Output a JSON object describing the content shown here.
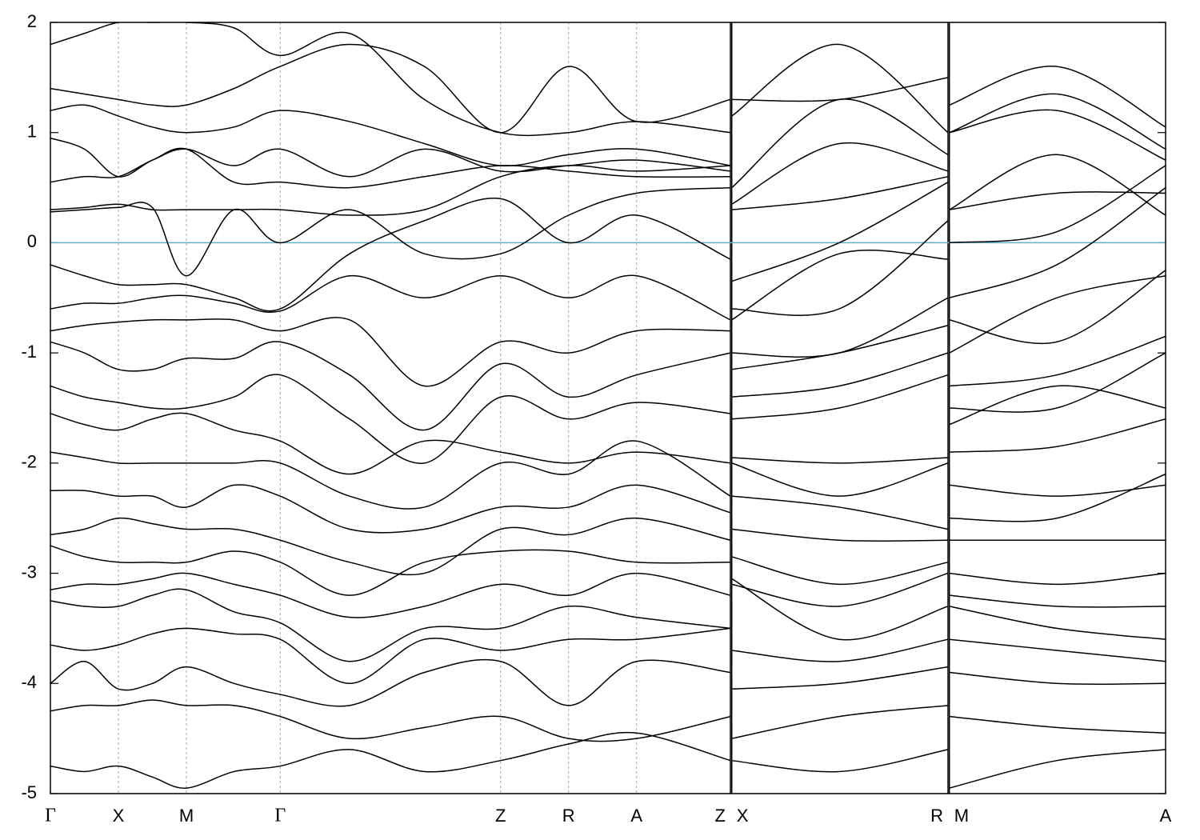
{
  "chart_data": {
    "type": "line",
    "x": [
      0,
      0.25,
      0.5,
      0.75,
      1.0,
      1.35,
      1.69,
      2.2,
      2.75,
      3.31,
      3.81,
      4.31,
      5.0,
      5.01,
      5.8,
      6.6,
      6.61,
      7.4,
      8.2
    ],
    "xlim": [
      0,
      8.2
    ],
    "xticks": [
      {
        "value": 0,
        "label": "Γ"
      },
      {
        "value": 0.5,
        "label": "X"
      },
      {
        "value": 1.0,
        "label": "M"
      },
      {
        "value": 1.69,
        "label": "Γ"
      },
      {
        "value": 3.31,
        "label": "Z"
      },
      {
        "value": 3.81,
        "label": "R"
      },
      {
        "value": 4.31,
        "label": "A"
      },
      {
        "value": 5.0,
        "label": "Z"
      },
      {
        "value": 5.01,
        "label": "X"
      },
      {
        "value": 6.6,
        "label": "R"
      },
      {
        "value": 6.61,
        "label": "M"
      },
      {
        "value": 8.2,
        "label": "A"
      }
    ],
    "ylim": [
      -5,
      2
    ],
    "yticks": [
      -5,
      -4,
      -3,
      -2,
      -1,
      0,
      1,
      2
    ],
    "line_color": "#000000",
    "fermi_level": 0,
    "fermi_color": "#5fb0c8",
    "series": [
      {
        "values": [
          1.8,
          1.9,
          2.0,
          2.0,
          2.0,
          1.95,
          1.7,
          1.9,
          1.3,
          1.0,
          1.0,
          1.1,
          1.0,
          1.15,
          1.8,
          1.0,
          1.25,
          1.6,
          1.05
        ]
      },
      {
        "values": [
          1.4,
          1.35,
          1.3,
          1.25,
          1.25,
          1.4,
          1.6,
          1.8,
          1.6,
          1.0,
          1.6,
          1.1,
          1.3,
          1.3,
          1.3,
          1.5,
          1.0,
          1.35,
          0.85
        ]
      },
      {
        "values": [
          1.2,
          1.25,
          1.15,
          1.05,
          1.0,
          1.05,
          1.2,
          1.1,
          0.9,
          0.7,
          0.8,
          0.85,
          0.7,
          0.5,
          1.3,
          0.8,
          1.0,
          1.2,
          0.75
        ]
      },
      {
        "values": [
          0.95,
          0.85,
          0.6,
          0.75,
          0.85,
          0.7,
          0.85,
          0.6,
          0.85,
          0.65,
          0.7,
          0.75,
          0.65,
          0.35,
          0.9,
          0.65,
          0.3,
          0.45,
          0.45
        ]
      },
      {
        "values": [
          0.55,
          0.6,
          0.6,
          0.75,
          0.85,
          0.55,
          0.55,
          0.5,
          0.6,
          0.7,
          0.65,
          0.6,
          0.6,
          0.3,
          0.4,
          0.6,
          0.3,
          0.8,
          0.25
        ]
      },
      {
        "values": [
          0.3,
          0.32,
          0.35,
          0.3,
          0.3,
          0.3,
          0.3,
          0.25,
          0.3,
          0.6,
          0.7,
          0.65,
          0.7,
          -0.35,
          0.0,
          0.55,
          0.0,
          0.1,
          0.7
        ]
      },
      {
        "values": [
          0.28,
          0.3,
          0.32,
          0.32,
          -0.3,
          0.3,
          0.0,
          0.3,
          -0.1,
          -0.1,
          0.25,
          0.45,
          0.5,
          -0.6,
          -0.6,
          0.2,
          -0.5,
          -0.2,
          0.5
        ]
      },
      {
        "values": [
          -0.2,
          -0.3,
          -0.38,
          -0.38,
          -0.38,
          -0.5,
          -0.6,
          -0.1,
          0.2,
          0.4,
          0.0,
          0.25,
          -0.15,
          -0.7,
          -0.1,
          -0.15,
          -0.7,
          -0.9,
          -0.25
        ]
      },
      {
        "values": [
          -0.6,
          -0.55,
          -0.55,
          -0.5,
          -0.48,
          -0.55,
          -0.62,
          -0.3,
          -0.5,
          -0.3,
          -0.5,
          -0.3,
          -0.7,
          -1.0,
          -1.0,
          -0.5,
          -1.0,
          -0.5,
          -0.3
        ]
      },
      {
        "values": [
          -0.8,
          -0.75,
          -0.72,
          -0.7,
          -0.7,
          -0.7,
          -0.8,
          -0.7,
          -1.3,
          -0.9,
          -1.0,
          -0.8,
          -0.8,
          -1.15,
          -1.0,
          -0.75,
          -1.3,
          -1.2,
          -0.85
        ]
      },
      {
        "values": [
          -0.9,
          -1.0,
          -1.15,
          -1.15,
          -1.05,
          -1.05,
          -0.9,
          -1.2,
          -1.7,
          -1.1,
          -1.4,
          -1.2,
          -1.0,
          -1.4,
          -1.3,
          -1.0,
          -1.5,
          -1.5,
          -1.0
        ]
      },
      {
        "values": [
          -1.3,
          -1.4,
          -1.45,
          -1.5,
          -1.5,
          -1.4,
          -1.2,
          -1.6,
          -2.0,
          -1.4,
          -1.6,
          -1.45,
          -1.55,
          -1.6,
          -1.5,
          -1.2,
          -1.65,
          -1.3,
          -1.5
        ]
      },
      {
        "values": [
          -1.55,
          -1.65,
          -1.7,
          -1.6,
          -1.55,
          -1.7,
          -1.8,
          -2.1,
          -1.8,
          -1.9,
          -2.0,
          -1.9,
          -2.0,
          -1.95,
          -2.0,
          -1.95,
          -1.9,
          -1.85,
          -1.6
        ]
      },
      {
        "values": [
          -1.9,
          -1.95,
          -2.0,
          -2.0,
          -2.0,
          -2.0,
          -2.0,
          -2.3,
          -2.4,
          -2.0,
          -2.1,
          -1.8,
          -2.3,
          -2.0,
          -2.3,
          -2.0,
          -2.2,
          -2.3,
          -2.2
        ]
      },
      {
        "values": [
          -2.25,
          -2.25,
          -2.3,
          -2.3,
          -2.4,
          -2.2,
          -2.3,
          -2.6,
          -2.6,
          -2.4,
          -2.4,
          -2.2,
          -2.45,
          -2.3,
          -2.4,
          -2.6,
          -2.5,
          -2.5,
          -2.1
        ]
      },
      {
        "values": [
          -2.65,
          -2.6,
          -2.5,
          -2.55,
          -2.6,
          -2.6,
          -2.7,
          -2.9,
          -3.0,
          -2.6,
          -2.65,
          -2.5,
          -2.7,
          -2.6,
          -2.7,
          -2.7,
          -2.7,
          -2.7,
          -2.7
        ]
      },
      {
        "values": [
          -2.75,
          -2.85,
          -2.9,
          -2.9,
          -2.9,
          -2.8,
          -2.9,
          -3.2,
          -2.9,
          -2.8,
          -2.8,
          -2.9,
          -2.9,
          -2.85,
          -3.1,
          -2.9,
          -3.0,
          -3.1,
          -3.0
        ]
      },
      {
        "values": [
          -3.15,
          -3.1,
          -3.1,
          -3.05,
          -3.0,
          -3.1,
          -3.2,
          -3.4,
          -3.3,
          -3.1,
          -3.2,
          -3.0,
          -3.2,
          -3.1,
          -3.3,
          -3.0,
          -3.2,
          -3.3,
          -3.3
        ]
      },
      {
        "values": [
          -3.25,
          -3.3,
          -3.3,
          -3.2,
          -3.15,
          -3.35,
          -3.45,
          -3.8,
          -3.5,
          -3.5,
          -3.3,
          -3.4,
          -3.5,
          -3.05,
          -3.6,
          -3.3,
          -3.3,
          -3.5,
          -3.6
        ]
      },
      {
        "values": [
          -3.65,
          -3.7,
          -3.65,
          -3.55,
          -3.5,
          -3.55,
          -3.6,
          -4.0,
          -3.6,
          -3.7,
          -3.6,
          -3.6,
          -3.5,
          -3.7,
          -3.8,
          -3.6,
          -3.6,
          -3.7,
          -3.8
        ]
      },
      {
        "values": [
          -4.0,
          -3.8,
          -4.05,
          -4.0,
          -3.85,
          -4.0,
          -4.1,
          -4.2,
          -3.9,
          -3.8,
          -4.2,
          -3.8,
          -3.9,
          -4.05,
          -4.0,
          -3.85,
          -3.9,
          -4.0,
          -4.0
        ]
      },
      {
        "values": [
          -4.25,
          -4.2,
          -4.2,
          -4.15,
          -4.2,
          -4.2,
          -4.3,
          -4.5,
          -4.4,
          -4.3,
          -4.5,
          -4.5,
          -4.3,
          -4.5,
          -4.3,
          -4.2,
          -4.3,
          -4.4,
          -4.45
        ]
      },
      {
        "values": [
          -4.75,
          -4.8,
          -4.75,
          -4.85,
          -4.95,
          -4.8,
          -4.75,
          -4.6,
          -4.8,
          -4.7,
          -4.55,
          -4.45,
          -4.7,
          -4.7,
          -4.8,
          -4.6,
          -4.95,
          -4.7,
          -4.6
        ]
      }
    ]
  }
}
